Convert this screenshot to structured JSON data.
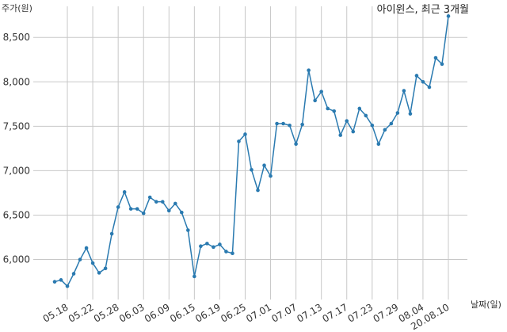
{
  "chart_data": {
    "type": "line",
    "title": "아이윈스, 최근 3개월",
    "ylabel": "주가(원)",
    "xlabel": "날짜(일)",
    "ylim": [
      5550,
      8850
    ],
    "yticks": [
      6000,
      6500,
      7000,
      7500,
      8000,
      8500
    ],
    "ytick_labels": [
      "6,000",
      "6,500",
      "7,000",
      "7,500",
      "8,000",
      "8,500"
    ],
    "xtick_labels": [
      "05.18",
      "05.22",
      "05.28",
      "06.03",
      "06.09",
      "06.15",
      "06.19",
      "06.25",
      "07.01",
      "07.07",
      "07.13",
      "07.17",
      "07.23",
      "07.29",
      "08.04",
      "20.08.10"
    ],
    "xtick_indices": [
      2,
      6,
      10,
      14,
      18,
      22,
      26,
      30,
      34,
      38,
      42,
      46,
      50,
      54,
      58,
      62
    ],
    "grid": true,
    "color": "#2a7ab0",
    "series": [
      {
        "values": [
          5750,
          5770,
          5700,
          5840,
          6000,
          6130,
          5960,
          5850,
          5900,
          6290,
          6590,
          6760,
          6570,
          6570,
          6520,
          6700,
          6650,
          6650,
          6550,
          6630,
          6530,
          6330,
          5810,
          6150,
          6180,
          6140,
          6170,
          6090,
          6070,
          7330,
          7410,
          7010,
          6780,
          7060,
          6940,
          7530,
          7530,
          7510,
          7300,
          7520,
          8130,
          7790,
          7890,
          7700,
          7670,
          7400,
          7560,
          7440,
          7700,
          7620,
          7510,
          7300,
          7460,
          7530,
          7650,
          7900,
          7640,
          8070,
          8000,
          7940,
          8270,
          8200,
          8740
        ]
      }
    ]
  }
}
